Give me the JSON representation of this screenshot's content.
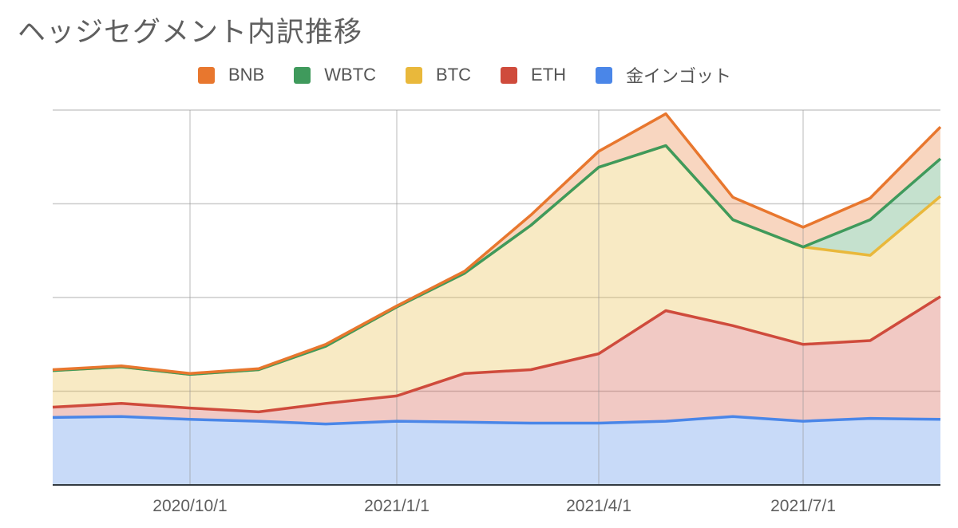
{
  "title": "ヘッジセグメント内訳推移",
  "legend": [
    {
      "label": "BNB",
      "color": "#e8772e"
    },
    {
      "label": "WBTC",
      "color": "#3f9a5c"
    },
    {
      "label": "BTC",
      "color": "#e9b83b"
    },
    {
      "label": "ETH",
      "color": "#cf4b3c"
    },
    {
      "label": "金インゴット",
      "color": "#4a86e8"
    }
  ],
  "x_axis": {
    "tick_labels": [
      "2020/10/1",
      "2021/1/1",
      "2021/4/1",
      "2021/7/1"
    ]
  },
  "chart_data": {
    "type": "area",
    "stacked": true,
    "title": "ヘッジセグメント内訳推移",
    "xlabel": "",
    "ylabel": "",
    "y_tick_labels_visible": false,
    "ylim": [
      0,
      4
    ],
    "grid": true,
    "legend_position": "top",
    "x": [
      "2020/8/1",
      "2020/9/1",
      "2020/10/1",
      "2020/11/1",
      "2020/12/1",
      "2021/1/1",
      "2021/2/1",
      "2021/3/1",
      "2021/4/1",
      "2021/5/1",
      "2021/6/1",
      "2021/7/1",
      "2021/8/1",
      "2021/9/1"
    ],
    "x_tick_labels": [
      "2020/10/1",
      "2021/1/1",
      "2021/4/1",
      "2021/7/1"
    ],
    "series": [
      {
        "name": "金インゴット",
        "color": "#4a86e8",
        "values": [
          0.72,
          0.73,
          0.7,
          0.68,
          0.65,
          0.68,
          0.67,
          0.66,
          0.66,
          0.68,
          0.73,
          0.68,
          0.71,
          0.7
        ]
      },
      {
        "name": "ETH",
        "color": "#cf4b3c",
        "values": [
          0.11,
          0.14,
          0.12,
          0.1,
          0.22,
          0.27,
          0.52,
          0.57,
          0.74,
          1.18,
          0.97,
          0.82,
          0.83,
          1.31
        ]
      },
      {
        "name": "BTC",
        "color": "#e9b83b",
        "values": [
          0.39,
          0.39,
          0.36,
          0.45,
          0.61,
          0.95,
          1.07,
          1.54,
          1.99,
          1.76,
          1.13,
          1.04,
          0.91,
          1.07
        ]
      },
      {
        "name": "WBTC",
        "color": "#3f9a5c",
        "values": [
          0,
          0,
          0,
          0,
          0,
          0,
          0,
          0,
          0,
          0,
          0,
          0,
          0.38,
          0.4
        ]
      },
      {
        "name": "BNB",
        "color": "#e8772e",
        "values": [
          0.01,
          0.01,
          0.01,
          0.01,
          0.02,
          0.01,
          0.02,
          0.11,
          0.17,
          0.34,
          0.24,
          0.21,
          0.23,
          0.34
        ]
      }
    ]
  }
}
